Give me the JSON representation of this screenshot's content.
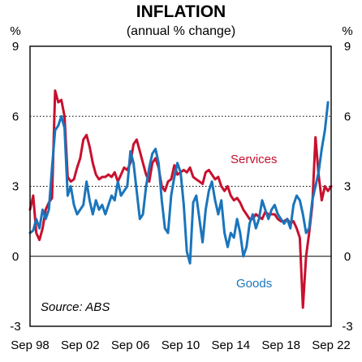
{
  "chart_data": {
    "type": "line",
    "title": "INFLATION",
    "subtitle": "(annual % change)",
    "y_unit_left": "%",
    "y_unit_right": "%",
    "ylim": [
      -3,
      9
    ],
    "yticks": [
      -3,
      0,
      3,
      6,
      9
    ],
    "xlim": [
      1998.67,
      2022.67
    ],
    "xticks": [
      {
        "x": 1998.67,
        "label": "Sep 98"
      },
      {
        "x": 2002.67,
        "label": "Sep 02"
      },
      {
        "x": 2006.67,
        "label": "Sep 06"
      },
      {
        "x": 2010.67,
        "label": "Sep 10"
      },
      {
        "x": 2014.67,
        "label": "Sep 14"
      },
      {
        "x": 2018.67,
        "label": "Sep 18"
      },
      {
        "x": 2022.67,
        "label": "Sep 22"
      }
    ],
    "grid": "dotted horizontal at 3 and 6",
    "source": "Source: ABS",
    "series": [
      {
        "name": "Services",
        "color": "#c8102e",
        "points": [
          [
            1998.67,
            2.0
          ],
          [
            1998.92,
            2.6
          ],
          [
            1999.17,
            1.0
          ],
          [
            1999.42,
            0.7
          ],
          [
            1999.67,
            1.2
          ],
          [
            1999.92,
            2.0
          ],
          [
            2000.17,
            2.3
          ],
          [
            2000.42,
            2.5
          ],
          [
            2000.67,
            7.1
          ],
          [
            2000.92,
            6.6
          ],
          [
            2001.17,
            6.7
          ],
          [
            2001.42,
            6.0
          ],
          [
            2001.67,
            3.4
          ],
          [
            2001.92,
            3.2
          ],
          [
            2002.17,
            3.3
          ],
          [
            2002.42,
            3.8
          ],
          [
            2002.67,
            4.2
          ],
          [
            2002.92,
            5.0
          ],
          [
            2003.17,
            5.2
          ],
          [
            2003.42,
            4.7
          ],
          [
            2003.67,
            4.0
          ],
          [
            2003.92,
            3.5
          ],
          [
            2004.17,
            3.3
          ],
          [
            2004.42,
            3.4
          ],
          [
            2004.67,
            3.4
          ],
          [
            2004.92,
            3.5
          ],
          [
            2005.17,
            3.4
          ],
          [
            2005.42,
            3.6
          ],
          [
            2005.67,
            3.2
          ],
          [
            2005.92,
            3.5
          ],
          [
            2006.17,
            3.8
          ],
          [
            2006.42,
            3.7
          ],
          [
            2006.67,
            4.0
          ],
          [
            2006.92,
            4.8
          ],
          [
            2007.17,
            5.0
          ],
          [
            2007.42,
            4.5
          ],
          [
            2007.67,
            4.0
          ],
          [
            2007.92,
            3.5
          ],
          [
            2008.17,
            3.2
          ],
          [
            2008.42,
            4.0
          ],
          [
            2008.67,
            4.2
          ],
          [
            2008.92,
            3.8
          ],
          [
            2009.17,
            3.0
          ],
          [
            2009.42,
            2.8
          ],
          [
            2009.67,
            3.2
          ],
          [
            2009.92,
            3.3
          ],
          [
            2010.17,
            3.9
          ],
          [
            2010.42,
            3.5
          ],
          [
            2010.67,
            3.6
          ],
          [
            2010.92,
            3.7
          ],
          [
            2011.17,
            3.6
          ],
          [
            2011.42,
            3.8
          ],
          [
            2011.67,
            3.4
          ],
          [
            2011.92,
            3.3
          ],
          [
            2012.17,
            3.2
          ],
          [
            2012.42,
            3.1
          ],
          [
            2012.67,
            3.6
          ],
          [
            2012.92,
            3.7
          ],
          [
            2013.17,
            3.5
          ],
          [
            2013.42,
            3.3
          ],
          [
            2013.67,
            3.4
          ],
          [
            2013.92,
            3.0
          ],
          [
            2014.17,
            2.8
          ],
          [
            2014.42,
            3.0
          ],
          [
            2014.67,
            2.6
          ],
          [
            2014.92,
            2.4
          ],
          [
            2015.17,
            2.5
          ],
          [
            2015.42,
            2.3
          ],
          [
            2015.67,
            2.0
          ],
          [
            2015.92,
            1.8
          ],
          [
            2016.17,
            1.6
          ],
          [
            2016.42,
            1.6
          ],
          [
            2016.67,
            1.8
          ],
          [
            2016.92,
            1.7
          ],
          [
            2017.17,
            1.6
          ],
          [
            2017.42,
            1.9
          ],
          [
            2017.67,
            1.8
          ],
          [
            2017.92,
            1.8
          ],
          [
            2018.17,
            1.8
          ],
          [
            2018.42,
            1.6
          ],
          [
            2018.67,
            1.5
          ],
          [
            2018.92,
            1.5
          ],
          [
            2019.17,
            1.6
          ],
          [
            2019.42,
            1.4
          ],
          [
            2019.67,
            1.5
          ],
          [
            2019.92,
            1.2
          ],
          [
            2020.17,
            0.8
          ],
          [
            2020.42,
            -2.2
          ],
          [
            2020.67,
            0.0
          ],
          [
            2020.92,
            1.0
          ],
          [
            2021.17,
            2.2
          ],
          [
            2021.42,
            5.1
          ],
          [
            2021.67,
            3.5
          ],
          [
            2021.92,
            2.4
          ],
          [
            2022.17,
            3.0
          ],
          [
            2022.42,
            2.8
          ],
          [
            2022.67,
            3.0
          ]
        ]
      },
      {
        "name": "Goods",
        "color": "#1a75bc",
        "points": [
          [
            1998.67,
            1.0
          ],
          [
            1998.92,
            1.1
          ],
          [
            1999.17,
            1.6
          ],
          [
            1999.42,
            1.2
          ],
          [
            1999.67,
            2.0
          ],
          [
            1999.92,
            1.6
          ],
          [
            2000.17,
            2.0
          ],
          [
            2000.42,
            3.8
          ],
          [
            2000.67,
            5.4
          ],
          [
            2000.92,
            5.6
          ],
          [
            2001.17,
            6.0
          ],
          [
            2001.42,
            5.5
          ],
          [
            2001.67,
            2.6
          ],
          [
            2001.92,
            3.0
          ],
          [
            2002.17,
            2.2
          ],
          [
            2002.42,
            1.8
          ],
          [
            2002.67,
            2.0
          ],
          [
            2002.92,
            2.2
          ],
          [
            2003.17,
            3.2
          ],
          [
            2003.42,
            2.4
          ],
          [
            2003.67,
            1.8
          ],
          [
            2003.92,
            2.4
          ],
          [
            2004.17,
            2.0
          ],
          [
            2004.42,
            2.2
          ],
          [
            2004.67,
            1.8
          ],
          [
            2004.92,
            2.2
          ],
          [
            2005.17,
            2.6
          ],
          [
            2005.42,
            2.4
          ],
          [
            2005.67,
            3.2
          ],
          [
            2005.92,
            2.6
          ],
          [
            2006.17,
            2.8
          ],
          [
            2006.42,
            3.0
          ],
          [
            2006.67,
            4.5
          ],
          [
            2006.92,
            4.0
          ],
          [
            2007.17,
            2.8
          ],
          [
            2007.42,
            1.6
          ],
          [
            2007.67,
            1.8
          ],
          [
            2007.92,
            3.0
          ],
          [
            2008.17,
            3.8
          ],
          [
            2008.42,
            4.4
          ],
          [
            2008.67,
            4.6
          ],
          [
            2008.92,
            4.0
          ],
          [
            2009.17,
            2.4
          ],
          [
            2009.42,
            1.2
          ],
          [
            2009.67,
            1.0
          ],
          [
            2009.92,
            2.6
          ],
          [
            2010.17,
            3.4
          ],
          [
            2010.42,
            4.0
          ],
          [
            2010.67,
            3.6
          ],
          [
            2010.92,
            2.2
          ],
          [
            2011.17,
            0.2
          ],
          [
            2011.42,
            -0.3
          ],
          [
            2011.67,
            2.3
          ],
          [
            2011.92,
            2.6
          ],
          [
            2012.17,
            1.6
          ],
          [
            2012.42,
            0.6
          ],
          [
            2012.67,
            2.0
          ],
          [
            2012.92,
            2.8
          ],
          [
            2013.17,
            3.2
          ],
          [
            2013.42,
            2.4
          ],
          [
            2013.67,
            1.8
          ],
          [
            2013.92,
            2.4
          ],
          [
            2014.17,
            1.0
          ],
          [
            2014.42,
            0.4
          ],
          [
            2014.67,
            1.0
          ],
          [
            2014.92,
            0.8
          ],
          [
            2015.17,
            1.6
          ],
          [
            2015.42,
            1.0
          ],
          [
            2015.67,
            0.0
          ],
          [
            2015.92,
            0.4
          ],
          [
            2016.17,
            1.4
          ],
          [
            2016.42,
            1.8
          ],
          [
            2016.67,
            1.2
          ],
          [
            2016.92,
            1.6
          ],
          [
            2017.17,
            2.4
          ],
          [
            2017.42,
            2.0
          ],
          [
            2017.67,
            1.6
          ],
          [
            2017.92,
            2.0
          ],
          [
            2018.17,
            2.2
          ],
          [
            2018.42,
            1.8
          ],
          [
            2018.67,
            1.6
          ],
          [
            2018.92,
            1.4
          ],
          [
            2019.17,
            1.6
          ],
          [
            2019.42,
            1.2
          ],
          [
            2019.67,
            2.2
          ],
          [
            2019.92,
            2.6
          ],
          [
            2020.17,
            2.4
          ],
          [
            2020.42,
            1.8
          ],
          [
            2020.67,
            1.0
          ],
          [
            2020.92,
            1.2
          ],
          [
            2021.17,
            2.4
          ],
          [
            2021.42,
            3.0
          ],
          [
            2021.67,
            3.6
          ],
          [
            2021.92,
            4.6
          ],
          [
            2022.17,
            5.4
          ],
          [
            2022.42,
            6.6
          ]
        ]
      }
    ],
    "annotations": [
      {
        "text": "Services",
        "series": "Services"
      },
      {
        "text": "Goods",
        "series": "Goods"
      }
    ]
  }
}
